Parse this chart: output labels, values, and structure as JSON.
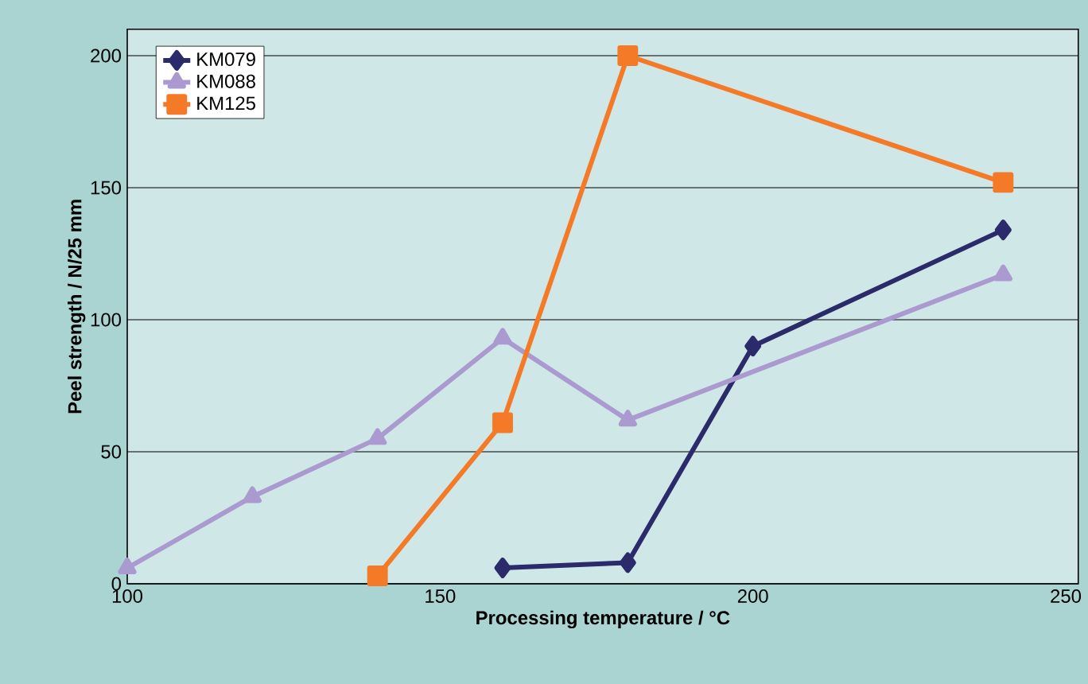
{
  "chart_data": {
    "type": "line",
    "xlabel": "Processing temperature / °C",
    "ylabel": "Peel strength / N/25 mm",
    "xlim": [
      100,
      252
    ],
    "xticks": [
      100,
      150,
      200,
      250
    ],
    "ylim": [
      0,
      210
    ],
    "yticks": [
      0,
      50,
      100,
      150,
      200
    ],
    "grid": "y",
    "legend": "top left",
    "line_style": "solid",
    "series": [
      {
        "name": "KM079",
        "color": "#2b2a6b",
        "marker": "diamond",
        "x": [
          160,
          180,
          200,
          240
        ],
        "values": [
          6,
          8,
          90,
          134
        ]
      },
      {
        "name": "KM088",
        "color": "#ab9ad0",
        "marker": "triangle",
        "x": [
          100,
          120,
          140,
          160,
          180,
          240
        ],
        "values": [
          6,
          33,
          55,
          93,
          62,
          117
        ]
      },
      {
        "name": "KM125",
        "color": "#f57a28",
        "marker": "square",
        "x": [
          140,
          160,
          180,
          240
        ],
        "values": [
          3,
          61,
          200,
          152
        ]
      }
    ]
  }
}
